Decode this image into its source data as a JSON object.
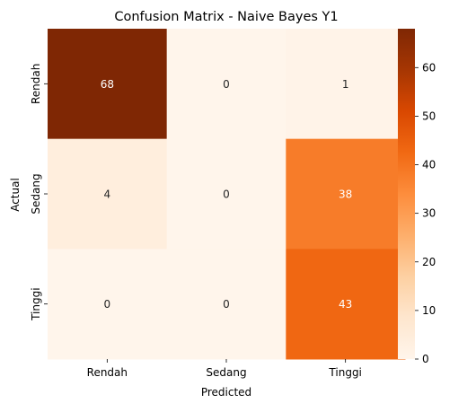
{
  "chart_data": {
    "type": "heatmap",
    "title": "Confusion Matrix - Naive Bayes Y1",
    "xlabel": "Predicted",
    "ylabel": "Actual",
    "x_categories": [
      "Rendah",
      "Sedang",
      "Tinggi"
    ],
    "y_categories": [
      "Rendah",
      "Sedang",
      "Tinggi"
    ],
    "values": [
      [
        68,
        0,
        1
      ],
      [
        4,
        0,
        38
      ],
      [
        0,
        0,
        43
      ]
    ],
    "colormap": "Oranges",
    "color_range": [
      0,
      68
    ],
    "colorbar_ticks": [
      0,
      10,
      20,
      30,
      40,
      50,
      60
    ]
  }
}
